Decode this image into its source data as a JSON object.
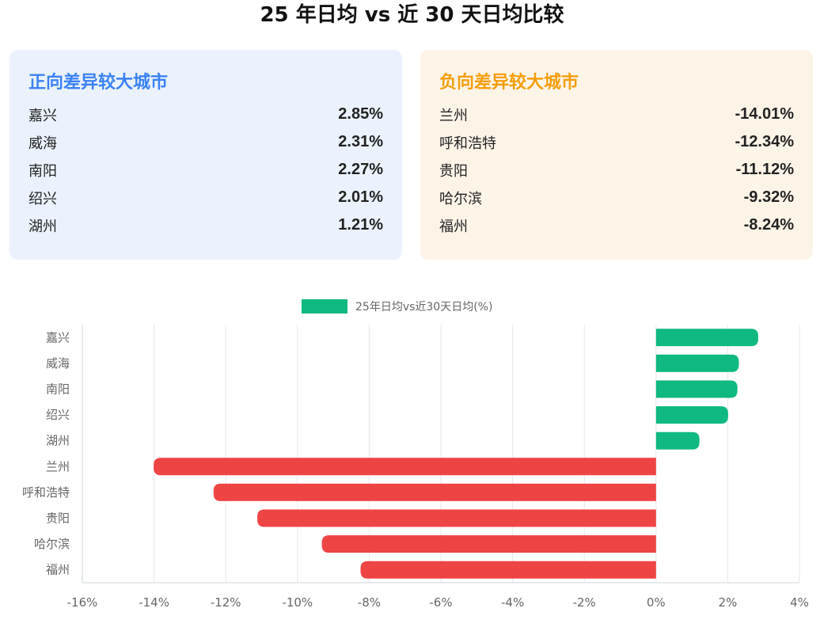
{
  "title": "25 年日均 vs 近 30 天日均比较",
  "positive_card": {
    "title": "正向差异较大城市",
    "items": [
      {
        "city": "嘉兴",
        "value": "2.85%"
      },
      {
        "city": "威海",
        "value": "2.31%"
      },
      {
        "city": "南阳",
        "value": "2.27%"
      },
      {
        "city": "绍兴",
        "value": "2.01%"
      },
      {
        "city": "湖州",
        "value": "1.21%"
      }
    ]
  },
  "negative_card": {
    "title": "负向差异较大城市",
    "items": [
      {
        "city": "兰州",
        "value": "-14.01%"
      },
      {
        "city": "呼和浩特",
        "value": "-12.34%"
      },
      {
        "city": "贵阳",
        "value": "-11.12%"
      },
      {
        "city": "哈尔滨",
        "value": "-9.32%"
      },
      {
        "city": "福州",
        "value": "-8.24%"
      }
    ]
  },
  "chart_data": {
    "type": "bar",
    "orientation": "horizontal",
    "categories": [
      "嘉兴",
      "威海",
      "南阳",
      "绍兴",
      "湖州",
      "兰州",
      "呼和浩特",
      "贵阳",
      "哈尔滨",
      "福州"
    ],
    "series": [
      {
        "name": "25年日均vs近30天日均(%)",
        "values": [
          2.85,
          2.31,
          2.27,
          2.01,
          1.21,
          -14.01,
          -12.34,
          -11.12,
          -9.32,
          -8.24
        ]
      }
    ],
    "xlim": [
      -16,
      4
    ],
    "x_ticks": [
      "-16%",
      "-14%",
      "-12%",
      "-10%",
      "-8%",
      "-6%",
      "-4%",
      "-2%",
      "0%",
      "2%",
      "4%"
    ],
    "x_tick_values": [
      -16,
      -14,
      -12,
      -10,
      -8,
      -6,
      -4,
      -2,
      0,
      2,
      4
    ],
    "grid": true,
    "legend_position": "top-center",
    "colors": {
      "positive": "#10b981",
      "negative": "#ef4444",
      "legend": "#10b981"
    }
  }
}
